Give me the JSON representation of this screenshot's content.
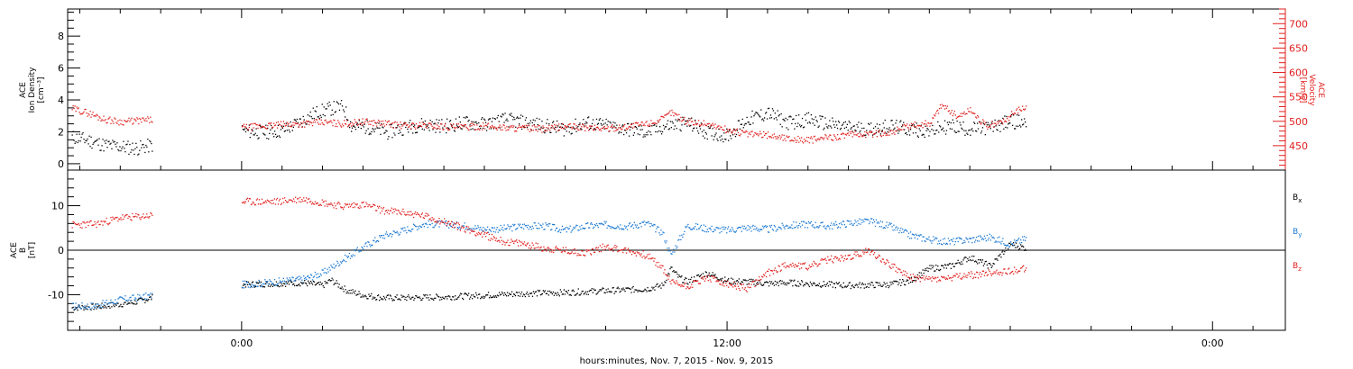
{
  "x_axis_title": "hours:minutes, Nov.  7, 2015 - Nov.  9, 2015",
  "colors": {
    "black": "#000000",
    "red": "#e0201e",
    "blue": "#1a78d2"
  },
  "chart_data": [
    {
      "type": "scatter",
      "panel": "top",
      "left_axis_label_lines": [
        "ACE",
        "Ion Density",
        "[cm⁻³]"
      ],
      "right_axis_label_lines": [
        "ACE",
        "Velocity",
        "[km/s]"
      ],
      "x_unit": "hours from 00:00 Nov. 7, 2015",
      "xlim": [
        -4.3,
        25.8
      ],
      "x_ticks": [
        {
          "x": 0,
          "label": "0:00"
        },
        {
          "x": 12,
          "label": "12:00"
        },
        {
          "x": 24,
          "label": "0:00"
        }
      ],
      "ylim_left": [
        -0.4,
        9.7
      ],
      "left_ticks": [
        0,
        2,
        4,
        6,
        8
      ],
      "ylim_right": [
        400,
        730
      ],
      "right_ticks": [
        450,
        500,
        550,
        600,
        650,
        700
      ],
      "series": [
        {
          "name": "Ion Density",
          "axis": "left",
          "color": "black",
          "points": [
            [
              -4.2,
              1.7
            ],
            [
              -3.8,
              1.5
            ],
            [
              -3.4,
              1.2
            ],
            [
              -3.0,
              1.1
            ],
            [
              -2.6,
              1.0
            ],
            [
              -2.2,
              1.2
            ],
            [
              0.0,
              2.1
            ],
            [
              0.5,
              2.0
            ],
            [
              1.0,
              2.1
            ],
            [
              1.4,
              2.6
            ],
            [
              1.8,
              3.2
            ],
            [
              2.2,
              3.5
            ],
            [
              2.5,
              3.6
            ],
            [
              2.7,
              2.4
            ],
            [
              3.2,
              2.3
            ],
            [
              3.6,
              2.0
            ],
            [
              4.0,
              2.3
            ],
            [
              4.5,
              2.5
            ],
            [
              5.0,
              2.4
            ],
            [
              5.5,
              2.6
            ],
            [
              6.0,
              2.5
            ],
            [
              6.5,
              2.8
            ],
            [
              7.0,
              2.6
            ],
            [
              7.5,
              2.4
            ],
            [
              8.0,
              2.2
            ],
            [
              8.5,
              2.6
            ],
            [
              9.0,
              2.4
            ],
            [
              9.5,
              2.2
            ],
            [
              10.0,
              2.0
            ],
            [
              10.5,
              2.4
            ],
            [
              11.0,
              2.6
            ],
            [
              11.5,
              2.0
            ],
            [
              12.0,
              1.8
            ],
            [
              12.5,
              2.8
            ],
            [
              13.0,
              3.2
            ],
            [
              13.5,
              2.6
            ],
            [
              14.0,
              2.8
            ],
            [
              14.5,
              2.5
            ],
            [
              15.0,
              2.3
            ],
            [
              15.5,
              2.2
            ],
            [
              16.0,
              2.4
            ],
            [
              16.5,
              2.2
            ],
            [
              17.0,
              2.1
            ],
            [
              17.5,
              2.4
            ],
            [
              18.0,
              2.2
            ],
            [
              18.5,
              2.3
            ],
            [
              19.0,
              2.7
            ],
            [
              19.4,
              2.6
            ]
          ]
        },
        {
          "name": "Velocity",
          "axis": "right",
          "color": "red",
          "points": [
            [
              -4.2,
              527
            ],
            [
              -3.8,
              518
            ],
            [
              -3.4,
              505
            ],
            [
              -3.0,
              500
            ],
            [
              -2.6,
              502
            ],
            [
              -2.2,
              504
            ],
            [
              0.0,
              488
            ],
            [
              0.5,
              491
            ],
            [
              1.0,
              494
            ],
            [
              1.5,
              496
            ],
            [
              2.0,
              499
            ],
            [
              2.5,
              496
            ],
            [
              3.0,
              500
            ],
            [
              3.5,
              497
            ],
            [
              4.0,
              492
            ],
            [
              4.5,
              493
            ],
            [
              5.0,
              490
            ],
            [
              5.5,
              489
            ],
            [
              6.0,
              491
            ],
            [
              6.5,
              488
            ],
            [
              7.0,
              487
            ],
            [
              7.5,
              485
            ],
            [
              8.0,
              491
            ],
            [
              8.5,
              488
            ],
            [
              9.0,
              486
            ],
            [
              9.5,
              490
            ],
            [
              10.0,
              496
            ],
            [
              10.4,
              505
            ],
            [
              10.6,
              520
            ],
            [
              11.0,
              500
            ],
            [
              11.5,
              496
            ],
            [
              12.0,
              483
            ],
            [
              12.5,
              475
            ],
            [
              13.0,
              473
            ],
            [
              13.5,
              466
            ],
            [
              14.0,
              462
            ],
            [
              14.5,
              468
            ],
            [
              15.0,
              473
            ],
            [
              15.5,
              475
            ],
            [
              16.0,
              478
            ],
            [
              16.5,
              491
            ],
            [
              17.0,
              497
            ],
            [
              17.3,
              535
            ],
            [
              17.7,
              510
            ],
            [
              18.0,
              525
            ],
            [
              18.4,
              490
            ],
            [
              18.8,
              500
            ],
            [
              19.2,
              526
            ],
            [
              19.4,
              531
            ]
          ]
        }
      ]
    },
    {
      "type": "scatter",
      "panel": "bottom",
      "left_axis_label_lines": [
        "ACE",
        "B",
        "[nT]"
      ],
      "x_unit": "hours from 00:00 Nov. 7, 2015",
      "xlim": [
        -4.3,
        25.8
      ],
      "x_ticks": [
        {
          "x": 0,
          "label": "0:00"
        },
        {
          "x": 12,
          "label": "12:00"
        },
        {
          "x": 24,
          "label": "0:00"
        }
      ],
      "ylim": [
        -18,
        18
      ],
      "y_ticks": [
        -10,
        0,
        10
      ],
      "zero_line": true,
      "series": [
        {
          "name": "B",
          "subscript": "x",
          "color": "black",
          "points": [
            [
              -4.2,
              -12.8
            ],
            [
              -3.6,
              -12.6
            ],
            [
              -3.0,
              -12.0
            ],
            [
              -2.6,
              -11.5
            ],
            [
              -2.2,
              -10.5
            ],
            [
              0.0,
              -7.6
            ],
            [
              0.8,
              -7.4
            ],
            [
              1.5,
              -7.2
            ],
            [
              2.0,
              -7.8
            ],
            [
              2.2,
              -6.6
            ],
            [
              2.6,
              -9.0
            ],
            [
              3.0,
              -10.0
            ],
            [
              3.5,
              -10.6
            ],
            [
              4.0,
              -10.6
            ],
            [
              5.0,
              -10.4
            ],
            [
              6.0,
              -10.0
            ],
            [
              7.0,
              -9.6
            ],
            [
              8.0,
              -9.4
            ],
            [
              9.0,
              -9.0
            ],
            [
              10.0,
              -8.6
            ],
            [
              10.4,
              -7.8
            ],
            [
              10.6,
              -4.0
            ],
            [
              10.8,
              -6.0
            ],
            [
              11.0,
              -7.0
            ],
            [
              11.5,
              -5.0
            ],
            [
              12.0,
              -6.8
            ],
            [
              12.5,
              -7.0
            ],
            [
              13.0,
              -7.4
            ],
            [
              13.5,
              -7.2
            ],
            [
              14.0,
              -7.4
            ],
            [
              15.0,
              -7.8
            ],
            [
              16.0,
              -7.6
            ],
            [
              16.5,
              -6.8
            ],
            [
              17.0,
              -4.0
            ],
            [
              17.5,
              -3.5
            ],
            [
              18.0,
              -1.5
            ],
            [
              18.5,
              -3.5
            ],
            [
              19.0,
              1.5
            ],
            [
              19.4,
              0.5
            ]
          ]
        },
        {
          "name": "B",
          "subscript": "y",
          "color": "blue",
          "points": [
            [
              -4.2,
              -12.5
            ],
            [
              -3.6,
              -12.3
            ],
            [
              -3.0,
              -11.0
            ],
            [
              -2.6,
              -10.6
            ],
            [
              -2.2,
              -10.0
            ],
            [
              0.0,
              -7.6
            ],
            [
              0.5,
              -7.3
            ],
            [
              1.0,
              -6.8
            ],
            [
              1.5,
              -6.4
            ],
            [
              2.0,
              -5.0
            ],
            [
              2.5,
              -2.0
            ],
            [
              3.0,
              0.8
            ],
            [
              3.5,
              3.4
            ],
            [
              4.0,
              4.6
            ],
            [
              4.5,
              6.0
            ],
            [
              5.0,
              6.0
            ],
            [
              5.5,
              5.6
            ],
            [
              6.0,
              4.8
            ],
            [
              6.5,
              5.0
            ],
            [
              7.0,
              5.6
            ],
            [
              7.5,
              5.5
            ],
            [
              8.0,
              4.6
            ],
            [
              8.5,
              5.5
            ],
            [
              9.0,
              5.8
            ],
            [
              9.5,
              5.5
            ],
            [
              10.0,
              6.2
            ],
            [
              10.4,
              4.0
            ],
            [
              10.6,
              -1.0
            ],
            [
              11.0,
              5.6
            ],
            [
              11.5,
              5.0
            ],
            [
              12.0,
              4.6
            ],
            [
              12.5,
              5.2
            ],
            [
              13.0,
              4.8
            ],
            [
              13.5,
              5.6
            ],
            [
              14.0,
              6.0
            ],
            [
              14.5,
              5.5
            ],
            [
              15.0,
              6.2
            ],
            [
              15.5,
              6.6
            ],
            [
              16.0,
              5.5
            ],
            [
              16.5,
              3.5
            ],
            [
              17.0,
              2.5
            ],
            [
              17.5,
              2.0
            ],
            [
              18.0,
              2.5
            ],
            [
              18.5,
              3.0
            ],
            [
              19.0,
              1.5
            ],
            [
              19.4,
              2.8
            ]
          ]
        },
        {
          "name": "B",
          "subscript": "z",
          "color": "red",
          "points": [
            [
              -4.2,
              5.8
            ],
            [
              -3.6,
              6.0
            ],
            [
              -3.0,
              7.4
            ],
            [
              -2.6,
              7.6
            ],
            [
              -2.2,
              8.0
            ],
            [
              0.0,
              11.0
            ],
            [
              0.8,
              11.0
            ],
            [
              1.5,
              11.6
            ],
            [
              2.0,
              10.8
            ],
            [
              2.5,
              10.0
            ],
            [
              3.0,
              10.4
            ],
            [
              3.5,
              9.0
            ],
            [
              4.0,
              8.6
            ],
            [
              4.5,
              7.8
            ],
            [
              5.0,
              6.5
            ],
            [
              5.5,
              5.0
            ],
            [
              6.0,
              3.5
            ],
            [
              6.5,
              2.0
            ],
            [
              7.0,
              1.5
            ],
            [
              7.5,
              0.5
            ],
            [
              8.0,
              0.0
            ],
            [
              8.5,
              -0.5
            ],
            [
              9.0,
              1.0
            ],
            [
              9.5,
              0.0
            ],
            [
              10.0,
              -1.0
            ],
            [
              10.4,
              -4.0
            ],
            [
              10.6,
              -7.0
            ],
            [
              11.0,
              -8.0
            ],
            [
              11.5,
              -6.0
            ],
            [
              12.0,
              -7.6
            ],
            [
              12.5,
              -8.5
            ],
            [
              13.0,
              -5.0
            ],
            [
              13.5,
              -3.0
            ],
            [
              14.0,
              -3.6
            ],
            [
              14.5,
              -2.0
            ],
            [
              15.0,
              -1.5
            ],
            [
              15.5,
              0.0
            ],
            [
              16.0,
              -3.0
            ],
            [
              16.5,
              -6.0
            ],
            [
              17.0,
              -6.4
            ],
            [
              17.5,
              -6.2
            ],
            [
              18.0,
              -5.5
            ],
            [
              18.5,
              -5.0
            ],
            [
              19.0,
              -4.5
            ],
            [
              19.4,
              -4.0
            ]
          ]
        }
      ]
    }
  ]
}
